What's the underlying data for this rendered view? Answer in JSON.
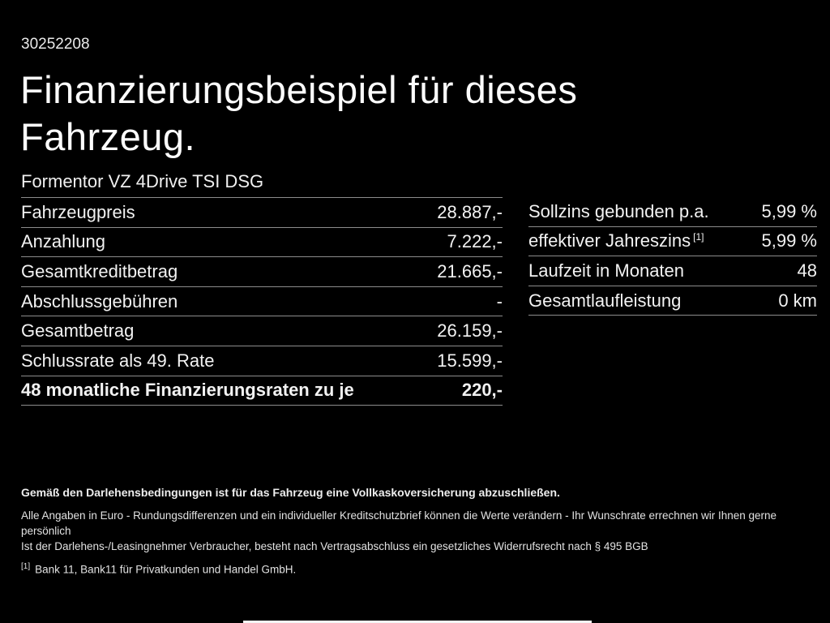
{
  "page": {
    "doc_id": "30252208",
    "title_line1": "Finanzierungsbeispiel für dieses",
    "title_line2": "Fahrzeug.",
    "vehicle_model": "Formentor VZ 4Drive TSI DSG"
  },
  "left_table": {
    "rows": [
      {
        "label": "Fahrzeugpreis",
        "value": "28.887,-"
      },
      {
        "label": "Anzahlung",
        "value": "7.222,-"
      },
      {
        "label": "Gesamtkreditbetrag",
        "value": "21.665,-"
      },
      {
        "label": "Abschlussgebühren",
        "value": "-"
      },
      {
        "label": "Gesamtbetrag",
        "value": "26.159,-"
      },
      {
        "label": "Schlussrate als 49. Rate",
        "value": "15.599,-"
      },
      {
        "label": "48 monatliche Finanzierungsraten zu je",
        "value": "220,-"
      }
    ]
  },
  "right_table": {
    "rows": [
      {
        "label": "Sollzins gebunden p.a.",
        "sup": "",
        "value": "5,99 %"
      },
      {
        "label": "effektiver Jahreszins",
        "sup": "[1]",
        "value": "5,99 %"
      },
      {
        "label": "Laufzeit in Monaten",
        "sup": "",
        "value": "48"
      },
      {
        "label": "Gesamtlaufleistung",
        "sup": "",
        "value": "0 km"
      }
    ]
  },
  "footer": {
    "line_bold": "Gemäß den Darlehensbedingungen ist für das Fahrzeug eine Vollkaskoversicherung abzuschließen.",
    "line2": "Alle Angaben in Euro - Rundungsdifferenzen und ein individueller Kreditschutzbrief können die Werte verändern - Ihr Wunschrate errechnen wir Ihnen gerne persönlich",
    "line3": "Ist der Darlehens-/Leasingnehmer Verbraucher, besteht nach Vertragsabschluss ein gesetzliches Widerrufsrecht nach § 495 BGB",
    "footnote_marker": "[1]",
    "footnote_text": "Bank 11, Bank11 für Privatkunden und Handel GmbH."
  },
  "colors": {
    "background": "#000000",
    "text_primary": "#f2f2f2",
    "divider": "#8c8c8c",
    "footer_text": "#e2e2e2"
  }
}
